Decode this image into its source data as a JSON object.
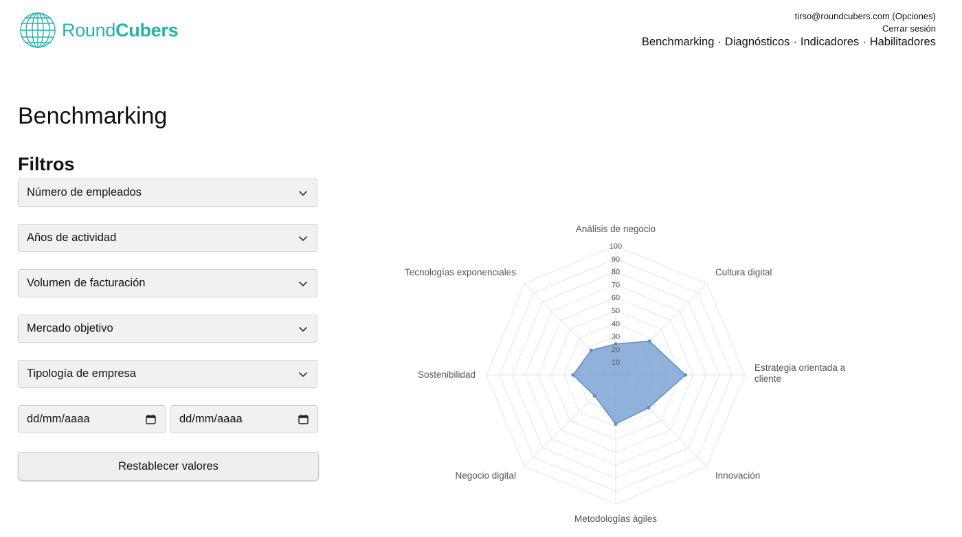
{
  "brand": {
    "name_part1": "Round",
    "name_part2": "Cubers",
    "color": "#26b3a9"
  },
  "user": {
    "email_line": "tirso@roundcubers.com (Opciones)",
    "logout": "Cerrar sesión"
  },
  "nav": {
    "items": [
      "Benchmarking",
      "Diagnósticos",
      "Indicadores",
      "Habilitadores"
    ],
    "separator": "·"
  },
  "page": {
    "title": "Benchmarking",
    "filters_title": "Filtros"
  },
  "filters": {
    "selects": [
      "Número de empleados",
      "Años de actividad",
      "Volumen de facturación",
      "Mercado objetivo",
      "Tipología de empresa"
    ],
    "date_from": "dd/mm/aaaa",
    "date_to": "dd/mm/aaaa",
    "reset_label": "Restablecer valores",
    "icons": {
      "select": "chevron-down-icon",
      "date": "calendar-icon"
    }
  },
  "chart_data": {
    "type": "radar",
    "categories": [
      "Análisis de negocio",
      "Cultura digital",
      "Estrategia orientada a cliente",
      "Innovación",
      "Metodologías ágiles",
      "Negocio digital",
      "Sostenibilidad",
      "Tecnologías exponenciales"
    ],
    "label_lines": [
      [
        "Análisis de negocio"
      ],
      [
        "Cultura digital"
      ],
      [
        "Estrategia orientada a",
        "cliente"
      ],
      [
        "Innovación"
      ],
      [
        "Metodologías ágiles"
      ],
      [
        "Negocio digital"
      ],
      [
        "Sostenibilidad"
      ],
      [
        "Tecnologías exponenciales"
      ]
    ],
    "series": [
      {
        "values": [
          24,
          37,
          54,
          36,
          38,
          23,
          33,
          27
        ],
        "fill": "#7ba3d4",
        "stroke": "#5f8fcb"
      }
    ],
    "ticks": [
      10,
      20,
      30,
      40,
      50,
      60,
      70,
      80,
      90,
      100
    ],
    "rmin": 0,
    "rmax": 100,
    "grid": true
  }
}
